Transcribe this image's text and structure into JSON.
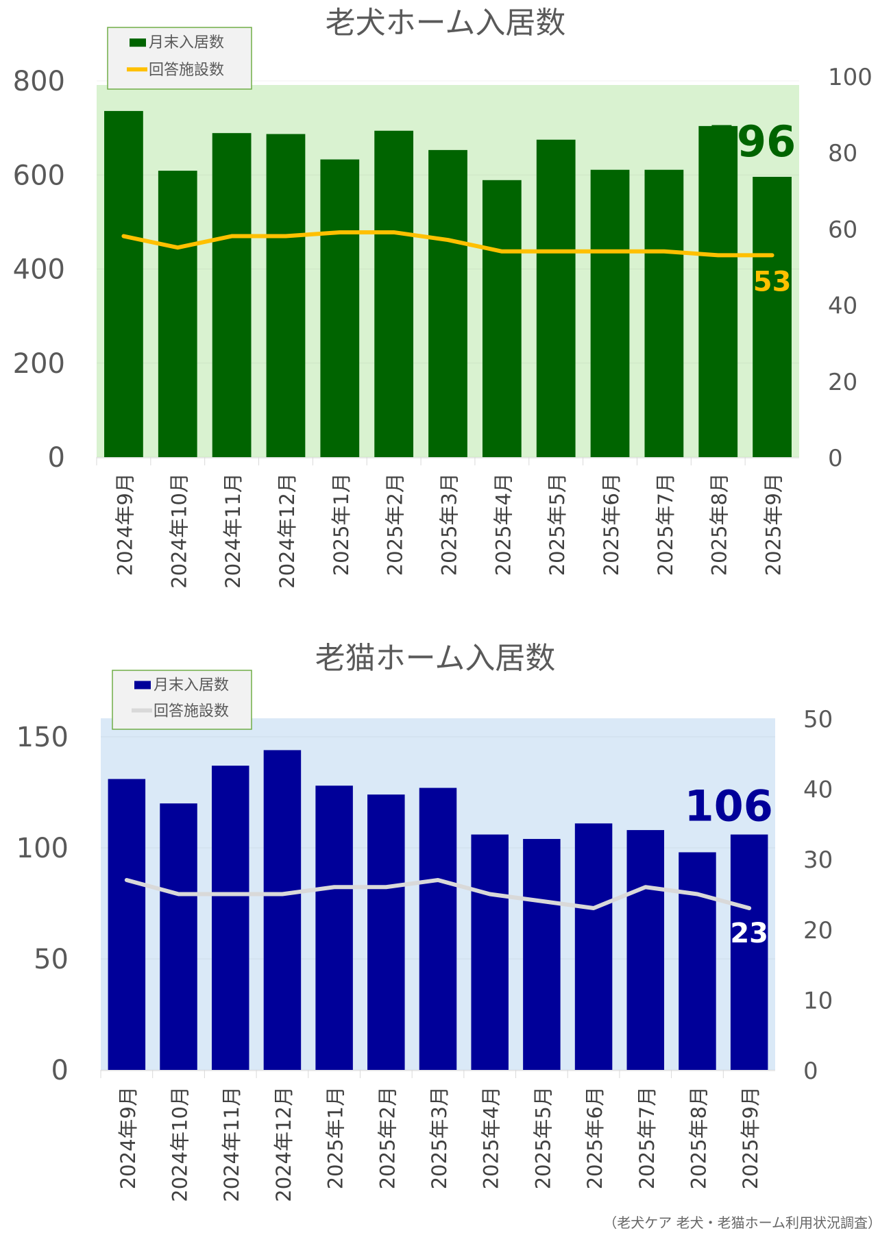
{
  "source": "（老犬ケア 老犬・老猫ホーム利用状況調査）",
  "chart_data": [
    {
      "type": "bar",
      "title": "老犬ホーム入居数",
      "categories": [
        "2024年9月",
        "2024年10月",
        "2024年11月",
        "2024年12月",
        "2025年1月",
        "2025年2月",
        "2025年3月",
        "2025年4月",
        "2025年5月",
        "2025年6月",
        "2025年7月",
        "2025年8月",
        "2025年9月"
      ],
      "series": [
        {
          "name": "月末入居数",
          "kind": "bar",
          "axis": "left",
          "color": "#006400",
          "values": [
            736,
            609,
            689,
            687,
            633,
            694,
            653,
            589,
            675,
            611,
            611,
            704,
            596
          ]
        },
        {
          "name": "回答施設数",
          "kind": "line",
          "axis": "right",
          "color": "#FFC000",
          "values": [
            58,
            55,
            58,
            58,
            59,
            59,
            57,
            54,
            54,
            54,
            54,
            53,
            53
          ]
        }
      ],
      "left_axis": {
        "min": 0,
        "max": 800,
        "ticks": [
          "0",
          "200",
          "400",
          "600",
          "800"
        ]
      },
      "right_axis": {
        "min": 0,
        "max": 100,
        "ticks": [
          "0",
          "20",
          "40",
          "60",
          "80",
          "100"
        ]
      },
      "data_labels": {
        "bar_last": "596",
        "line_last": "53"
      },
      "plot_bg": "#D9F2D0",
      "legend": "top-left"
    },
    {
      "type": "bar",
      "title": "老猫ホーム入居数",
      "categories": [
        "2024年9月",
        "2024年10月",
        "2024年11月",
        "2024年12月",
        "2025年1月",
        "2025年2月",
        "2025年3月",
        "2025年4月",
        "2025年5月",
        "2025年6月",
        "2025年7月",
        "2025年8月",
        "2025年9月"
      ],
      "series": [
        {
          "name": "月末入居数",
          "kind": "bar",
          "axis": "left",
          "color": "#000099",
          "values": [
            131,
            120,
            137,
            144,
            128,
            124,
            127,
            106,
            104,
            111,
            108,
            98,
            106
          ]
        },
        {
          "name": "回答施設数",
          "kind": "line",
          "axis": "right",
          "color": "#D9D9D9",
          "values": [
            27,
            25,
            25,
            25,
            26,
            26,
            27,
            25,
            24,
            23,
            26,
            25,
            23
          ]
        }
      ],
      "left_axis": {
        "min": 0,
        "max": 150,
        "ticks": [
          "0",
          "50",
          "100",
          "150"
        ]
      },
      "right_axis": {
        "min": 0,
        "max": 50,
        "ticks": [
          "0",
          "10",
          "20",
          "30",
          "40",
          "50"
        ]
      },
      "data_labels": {
        "bar_last": "106",
        "line_last": "23"
      },
      "plot_bg": "#DAE9F7",
      "legend": "top-left"
    }
  ]
}
